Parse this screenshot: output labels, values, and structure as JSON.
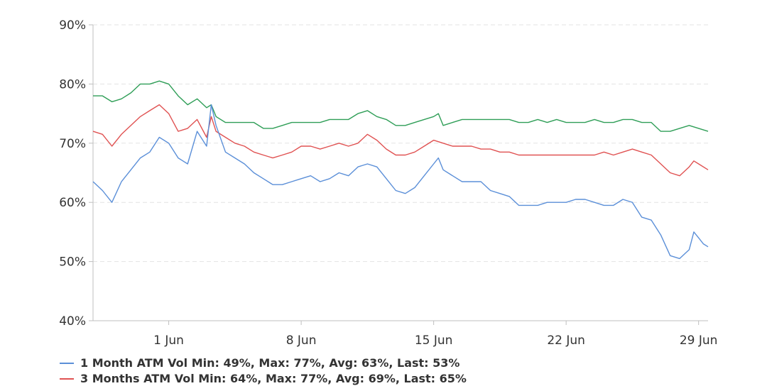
{
  "chart_data": {
    "type": "line",
    "title": "",
    "xlabel": "",
    "ylabel": "",
    "x_range": [
      "2021-05-28",
      "2021-06-29"
    ],
    "x_ticks": [
      {
        "date": "2021-06-01",
        "label": "1 Jun"
      },
      {
        "date": "2021-06-08",
        "label": "8 Jun"
      },
      {
        "date": "2021-06-15",
        "label": "15 Jun"
      },
      {
        "date": "2021-06-22",
        "label": "22 Jun"
      },
      {
        "date": "2021-06-29",
        "label": "29 Jun"
      }
    ],
    "ylim": [
      40,
      90
    ],
    "y_ticks": [
      {
        "value": 40,
        "label": "40%"
      },
      {
        "value": 50,
        "label": "50%"
      },
      {
        "value": 60,
        "label": "60%"
      },
      {
        "value": 70,
        "label": "70%"
      },
      {
        "value": 80,
        "label": "80%"
      },
      {
        "value": 90,
        "label": "90%"
      }
    ],
    "grid": true,
    "legend_position": "bottom-left",
    "series": [
      {
        "name": "1 Month ATM Vol",
        "stats": "Min: 49%, Max: 77%, Avg: 63%, Last: 53%",
        "color": "#5b8fd8",
        "points": [
          [
            "2021-05-28T00:00",
            63.5
          ],
          [
            "2021-05-28T12:00",
            62
          ],
          [
            "2021-05-29T00:00",
            60
          ],
          [
            "2021-05-29T12:00",
            63.5
          ],
          [
            "2021-05-30T00:00",
            65.5
          ],
          [
            "2021-05-30T12:00",
            67.5
          ],
          [
            "2021-05-31T00:00",
            68.5
          ],
          [
            "2021-05-31T12:00",
            71
          ],
          [
            "2021-06-01T00:00",
            70
          ],
          [
            "2021-06-01T12:00",
            67.5
          ],
          [
            "2021-06-02T00:00",
            66.5
          ],
          [
            "2021-06-02T12:00",
            72
          ],
          [
            "2021-06-03T00:00",
            69.5
          ],
          [
            "2021-06-03T06:00",
            76.5
          ],
          [
            "2021-06-03T12:00",
            73
          ],
          [
            "2021-06-04T00:00",
            68.5
          ],
          [
            "2021-06-04T12:00",
            67.5
          ],
          [
            "2021-06-05T00:00",
            66.5
          ],
          [
            "2021-06-05T12:00",
            65
          ],
          [
            "2021-06-06T00:00",
            64
          ],
          [
            "2021-06-06T12:00",
            63
          ],
          [
            "2021-06-07T00:00",
            63
          ],
          [
            "2021-06-07T12:00",
            63.5
          ],
          [
            "2021-06-08T00:00",
            64
          ],
          [
            "2021-06-08T12:00",
            64.5
          ],
          [
            "2021-06-09T00:00",
            63.5
          ],
          [
            "2021-06-09T12:00",
            64
          ],
          [
            "2021-06-10T00:00",
            65
          ],
          [
            "2021-06-10T12:00",
            64.5
          ],
          [
            "2021-06-11T00:00",
            66
          ],
          [
            "2021-06-11T12:00",
            66.5
          ],
          [
            "2021-06-12T00:00",
            66
          ],
          [
            "2021-06-12T12:00",
            64
          ],
          [
            "2021-06-13T00:00",
            62
          ],
          [
            "2021-06-13T12:00",
            61.5
          ],
          [
            "2021-06-14T00:00",
            62.5
          ],
          [
            "2021-06-14T12:00",
            64.5
          ],
          [
            "2021-06-15T00:00",
            66.5
          ],
          [
            "2021-06-15T06:00",
            67.5
          ],
          [
            "2021-06-15T12:00",
            65.5
          ],
          [
            "2021-06-16T00:00",
            64.5
          ],
          [
            "2021-06-16T12:00",
            63.5
          ],
          [
            "2021-06-17T00:00",
            63.5
          ],
          [
            "2021-06-17T12:00",
            63.5
          ],
          [
            "2021-06-18T00:00",
            62
          ],
          [
            "2021-06-18T12:00",
            61.5
          ],
          [
            "2021-06-19T00:00",
            61
          ],
          [
            "2021-06-19T12:00",
            59.5
          ],
          [
            "2021-06-20T00:00",
            59.5
          ],
          [
            "2021-06-20T12:00",
            59.5
          ],
          [
            "2021-06-21T00:00",
            60
          ],
          [
            "2021-06-21T12:00",
            60
          ],
          [
            "2021-06-22T00:00",
            60
          ],
          [
            "2021-06-22T12:00",
            60.5
          ],
          [
            "2021-06-23T00:00",
            60.5
          ],
          [
            "2021-06-23T12:00",
            60
          ],
          [
            "2021-06-24T00:00",
            59.5
          ],
          [
            "2021-06-24T12:00",
            59.5
          ],
          [
            "2021-06-25T00:00",
            60.5
          ],
          [
            "2021-06-25T12:00",
            60
          ],
          [
            "2021-06-26T00:00",
            57.5
          ],
          [
            "2021-06-26T12:00",
            57
          ],
          [
            "2021-06-27T00:00",
            54.5
          ],
          [
            "2021-06-27T12:00",
            51
          ],
          [
            "2021-06-28T00:00",
            50.5
          ],
          [
            "2021-06-28T12:00",
            52
          ],
          [
            "2021-06-28T18:00",
            55
          ],
          [
            "2021-06-29T00:00",
            54
          ],
          [
            "2021-06-29T06:00",
            53
          ],
          [
            "2021-06-29T12:00",
            52.5
          ]
        ]
      },
      {
        "name": "3 Months ATM Vol",
        "stats": "Min: 64%, Max: 77%, Avg: 69%, Last: 65%",
        "color": "#e05252",
        "points": [
          [
            "2021-05-28T00:00",
            72
          ],
          [
            "2021-05-28T12:00",
            71.5
          ],
          [
            "2021-05-29T00:00",
            69.5
          ],
          [
            "2021-05-29T12:00",
            71.5
          ],
          [
            "2021-05-30T00:00",
            73
          ],
          [
            "2021-05-30T12:00",
            74.5
          ],
          [
            "2021-05-31T00:00",
            75.5
          ],
          [
            "2021-05-31T12:00",
            76.5
          ],
          [
            "2021-06-01T00:00",
            75
          ],
          [
            "2021-06-01T12:00",
            72
          ],
          [
            "2021-06-02T00:00",
            72.5
          ],
          [
            "2021-06-02T12:00",
            74
          ],
          [
            "2021-06-03T00:00",
            71
          ],
          [
            "2021-06-03T06:00",
            74.5
          ],
          [
            "2021-06-03T12:00",
            72
          ],
          [
            "2021-06-04T00:00",
            71
          ],
          [
            "2021-06-04T12:00",
            70
          ],
          [
            "2021-06-05T00:00",
            69.5
          ],
          [
            "2021-06-05T12:00",
            68.5
          ],
          [
            "2021-06-06T00:00",
            68
          ],
          [
            "2021-06-06T12:00",
            67.5
          ],
          [
            "2021-06-07T00:00",
            68
          ],
          [
            "2021-06-07T12:00",
            68.5
          ],
          [
            "2021-06-08T00:00",
            69.5
          ],
          [
            "2021-06-08T12:00",
            69.5
          ],
          [
            "2021-06-09T00:00",
            69
          ],
          [
            "2021-06-09T12:00",
            69.5
          ],
          [
            "2021-06-10T00:00",
            70
          ],
          [
            "2021-06-10T12:00",
            69.5
          ],
          [
            "2021-06-11T00:00",
            70
          ],
          [
            "2021-06-11T12:00",
            71.5
          ],
          [
            "2021-06-12T00:00",
            70.5
          ],
          [
            "2021-06-12T12:00",
            69
          ],
          [
            "2021-06-13T00:00",
            68
          ],
          [
            "2021-06-13T12:00",
            68
          ],
          [
            "2021-06-14T00:00",
            68.5
          ],
          [
            "2021-06-14T12:00",
            69.5
          ],
          [
            "2021-06-15T00:00",
            70.5
          ],
          [
            "2021-06-15T12:00",
            70
          ],
          [
            "2021-06-16T00:00",
            69.5
          ],
          [
            "2021-06-16T12:00",
            69.5
          ],
          [
            "2021-06-17T00:00",
            69.5
          ],
          [
            "2021-06-17T12:00",
            69
          ],
          [
            "2021-06-18T00:00",
            69
          ],
          [
            "2021-06-18T12:00",
            68.5
          ],
          [
            "2021-06-19T00:00",
            68.5
          ],
          [
            "2021-06-19T12:00",
            68
          ],
          [
            "2021-06-20T00:00",
            68
          ],
          [
            "2021-06-20T12:00",
            68
          ],
          [
            "2021-06-21T00:00",
            68
          ],
          [
            "2021-06-21T12:00",
            68
          ],
          [
            "2021-06-22T00:00",
            68
          ],
          [
            "2021-06-22T12:00",
            68
          ],
          [
            "2021-06-23T00:00",
            68
          ],
          [
            "2021-06-23T12:00",
            68
          ],
          [
            "2021-06-24T00:00",
            68.5
          ],
          [
            "2021-06-24T12:00",
            68
          ],
          [
            "2021-06-25T00:00",
            68.5
          ],
          [
            "2021-06-25T12:00",
            69
          ],
          [
            "2021-06-26T00:00",
            68.5
          ],
          [
            "2021-06-26T12:00",
            68
          ],
          [
            "2021-06-27T00:00",
            66.5
          ],
          [
            "2021-06-27T12:00",
            65
          ],
          [
            "2021-06-28T00:00",
            64.5
          ],
          [
            "2021-06-28T12:00",
            66
          ],
          [
            "2021-06-28T18:00",
            67
          ],
          [
            "2021-06-29T00:00",
            66.5
          ],
          [
            "2021-06-29T12:00",
            65.5
          ]
        ]
      },
      {
        "name": "",
        "color": "#2f9e57",
        "points": [
          [
            "2021-05-28T00:00",
            78
          ],
          [
            "2021-05-28T12:00",
            78
          ],
          [
            "2021-05-29T00:00",
            77
          ],
          [
            "2021-05-29T12:00",
            77.5
          ],
          [
            "2021-05-30T00:00",
            78.5
          ],
          [
            "2021-05-30T12:00",
            80
          ],
          [
            "2021-05-31T00:00",
            80
          ],
          [
            "2021-05-31T12:00",
            80.5
          ],
          [
            "2021-06-01T00:00",
            80
          ],
          [
            "2021-06-01T12:00",
            78
          ],
          [
            "2021-06-02T00:00",
            76.5
          ],
          [
            "2021-06-02T12:00",
            77.5
          ],
          [
            "2021-06-03T00:00",
            76
          ],
          [
            "2021-06-03T06:00",
            76.5
          ],
          [
            "2021-06-03T12:00",
            74.5
          ],
          [
            "2021-06-04T00:00",
            73.5
          ],
          [
            "2021-06-04T12:00",
            73.5
          ],
          [
            "2021-06-05T00:00",
            73.5
          ],
          [
            "2021-06-05T12:00",
            73.5
          ],
          [
            "2021-06-06T00:00",
            72.5
          ],
          [
            "2021-06-06T12:00",
            72.5
          ],
          [
            "2021-06-07T00:00",
            73
          ],
          [
            "2021-06-07T12:00",
            73.5
          ],
          [
            "2021-06-08T00:00",
            73.5
          ],
          [
            "2021-06-08T12:00",
            73.5
          ],
          [
            "2021-06-09T00:00",
            73.5
          ],
          [
            "2021-06-09T12:00",
            74
          ],
          [
            "2021-06-10T00:00",
            74
          ],
          [
            "2021-06-10T12:00",
            74
          ],
          [
            "2021-06-11T00:00",
            75
          ],
          [
            "2021-06-11T12:00",
            75.5
          ],
          [
            "2021-06-12T00:00",
            74.5
          ],
          [
            "2021-06-12T12:00",
            74
          ],
          [
            "2021-06-13T00:00",
            73
          ],
          [
            "2021-06-13T12:00",
            73
          ],
          [
            "2021-06-14T00:00",
            73.5
          ],
          [
            "2021-06-14T12:00",
            74
          ],
          [
            "2021-06-15T00:00",
            74.5
          ],
          [
            "2021-06-15T06:00",
            75
          ],
          [
            "2021-06-15T12:00",
            73
          ],
          [
            "2021-06-16T00:00",
            73.5
          ],
          [
            "2021-06-16T12:00",
            74
          ],
          [
            "2021-06-17T00:00",
            74
          ],
          [
            "2021-06-17T12:00",
            74
          ],
          [
            "2021-06-18T00:00",
            74
          ],
          [
            "2021-06-18T12:00",
            74
          ],
          [
            "2021-06-19T00:00",
            74
          ],
          [
            "2021-06-19T12:00",
            73.5
          ],
          [
            "2021-06-20T00:00",
            73.5
          ],
          [
            "2021-06-20T12:00",
            74
          ],
          [
            "2021-06-21T00:00",
            73.5
          ],
          [
            "2021-06-21T12:00",
            74
          ],
          [
            "2021-06-22T00:00",
            73.5
          ],
          [
            "2021-06-22T12:00",
            73.5
          ],
          [
            "2021-06-23T00:00",
            73.5
          ],
          [
            "2021-06-23T12:00",
            74
          ],
          [
            "2021-06-24T00:00",
            73.5
          ],
          [
            "2021-06-24T12:00",
            73.5
          ],
          [
            "2021-06-25T00:00",
            74
          ],
          [
            "2021-06-25T12:00",
            74
          ],
          [
            "2021-06-26T00:00",
            73.5
          ],
          [
            "2021-06-26T12:00",
            73.5
          ],
          [
            "2021-06-27T00:00",
            72
          ],
          [
            "2021-06-27T12:00",
            72
          ],
          [
            "2021-06-28T00:00",
            72.5
          ],
          [
            "2021-06-28T12:00",
            73
          ],
          [
            "2021-06-29T00:00",
            72.5
          ],
          [
            "2021-06-29T12:00",
            72
          ]
        ]
      }
    ]
  },
  "legend": {
    "items": [
      {
        "label": "1 Month ATM Vol Min: 49%, Max: 77%, Avg: 63%, Last: 53%",
        "color": "#5b8fd8"
      },
      {
        "label": "3 Months ATM Vol Min: 64%, Max: 77%, Avg: 69%, Last: 65%",
        "color": "#e05252"
      }
    ]
  }
}
